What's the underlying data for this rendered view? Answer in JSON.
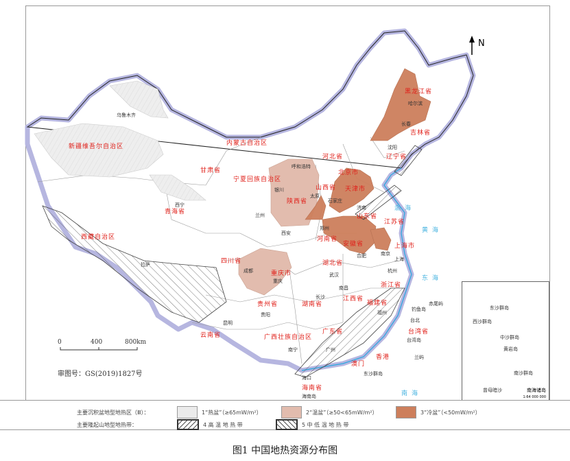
{
  "map": {
    "north_label": "N",
    "scale": {
      "ticks": [
        "0",
        "400",
        "800km"
      ]
    },
    "approval_number": "审图号：GS(2019)1827号",
    "provinces": [
      "新疆维吾尔自治区",
      "西藏自治区",
      "青海省",
      "甘肃省",
      "内蒙古自治区",
      "黑龙江省",
      "吉林省",
      "辽宁省",
      "河北省",
      "北京市",
      "天津市",
      "山西省",
      "山东省",
      "陕西省",
      "宁夏回族自治区",
      "河南省",
      "江苏省",
      "安徽省",
      "上海市",
      "四川省",
      "重庆市",
      "湖北省",
      "浙江省",
      "贵州省",
      "湖南省",
      "江西省",
      "福建省",
      "云南省",
      "广西壮族自治区",
      "广东省",
      "台湾省",
      "香港",
      "澳门",
      "海南省"
    ],
    "cities": [
      "乌鲁木齐",
      "拉萨",
      "西宁",
      "兰州",
      "银川",
      "呼和浩特",
      "太原",
      "石家庄",
      "西安",
      "郑州",
      "济南",
      "沈阳",
      "长春",
      "哈尔滨",
      "南京",
      "合肥",
      "上海",
      "杭州",
      "武汉",
      "成都",
      "重庆",
      "长沙",
      "南昌",
      "福州",
      "贵阳",
      "昆明",
      "南宁",
      "广州",
      "海口",
      "台北"
    ],
    "seas": [
      "渤海",
      "黄海",
      "东海",
      "南海"
    ],
    "islands": [
      "钓鱼岛",
      "赤尾屿",
      "台湾岛",
      "海南岛",
      "东沙群岛",
      "兰屿"
    ],
    "inset": {
      "title": "南海诸岛",
      "scale": "1:64 000 000",
      "labels": [
        "东沙群岛",
        "西沙群岛",
        "中沙群岛",
        "黄岩岛",
        "南沙群岛",
        "曾母暗沙"
      ]
    },
    "colors": {
      "hot_basin": "#ebebeb",
      "warm_basin": "#e2bcae",
      "cold_basin": "#cd7f5c",
      "border_glow": "#b6b6e0",
      "coast": "#29a8e0",
      "label_red": "#e0201a"
    }
  },
  "legend": {
    "basin_title": "主要沉积盆地型地热区（Ⅲ）：",
    "basin_items": [
      {
        "label": "1“热盆”（≥65mW/m²）",
        "color": "#ebebeb"
      },
      {
        "label": "2“温盆”（≥50<65mW/m²）",
        "color": "#e2bcae"
      },
      {
        "label": "3“冷盆”（<50mW/m²）",
        "color": "#cd7f5c"
      }
    ],
    "belt_title": "主要隆起山地型地热带：",
    "belt_items": [
      {
        "label": "4 高 温 地 热 带",
        "hatch": "forward-diagonal"
      },
      {
        "label": "5 中 低 温 地 热 带",
        "hatch": "back-diagonal"
      }
    ]
  },
  "caption": "图1  中国地热资源分布图"
}
